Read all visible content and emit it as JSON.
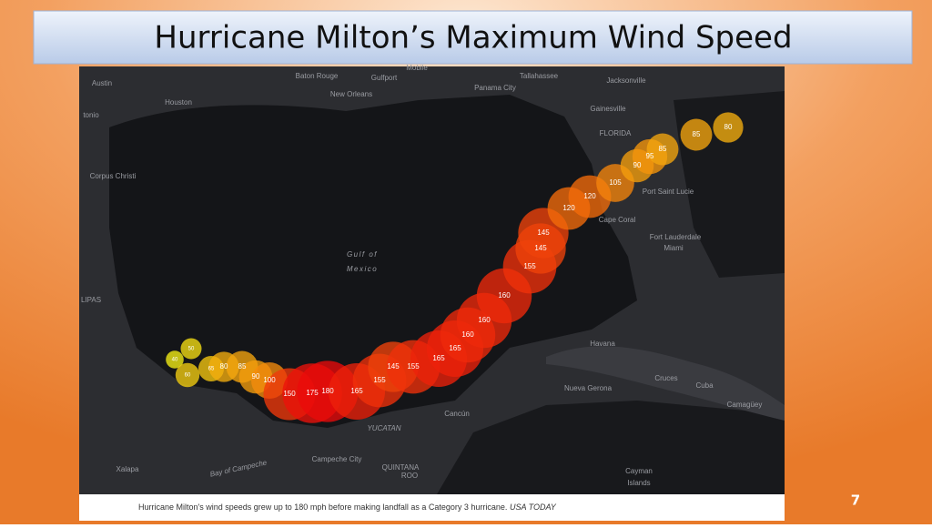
{
  "title": "Hurricane Milton’s Maximum Wind Speed",
  "map": {
    "places": [
      "Austin",
      "Baton Rouge",
      "Gulfport",
      "Mobile",
      "Tallahassee",
      "Jacksonville",
      "New Orleans",
      "Panama City",
      "Houston",
      "Gainesville",
      "tonio",
      "FLORIDA",
      "Corpus Christi",
      "Port Saint Lucie",
      "Cape Coral",
      "Fort Lauderdale",
      "Miami",
      "Gulf of",
      "Mexico",
      "LIPAS",
      "Havana",
      "Cruces",
      "Cuba",
      "Nueva Gerona",
      "Camagüey",
      "Cancún",
      "YUCATAN",
      "Campeche City",
      "Bay of Campeche",
      "Xalapa",
      "QUINTANA",
      "ROO",
      "Cayman",
      "Islands"
    ],
    "track": [
      40,
      50,
      60,
      65,
      80,
      85,
      90,
      100,
      150,
      175,
      180,
      165,
      155,
      145,
      155,
      165,
      165,
      160,
      160,
      160,
      155,
      145,
      145,
      120,
      120,
      105,
      90,
      95,
      85,
      85,
      80
    ]
  },
  "caption": {
    "text": "Hurricane Milton's wind speeds grew up to 180 mph before making landfall as a Category 3 hurricane.",
    "source": "USA TODAY"
  },
  "page_number": 7
}
